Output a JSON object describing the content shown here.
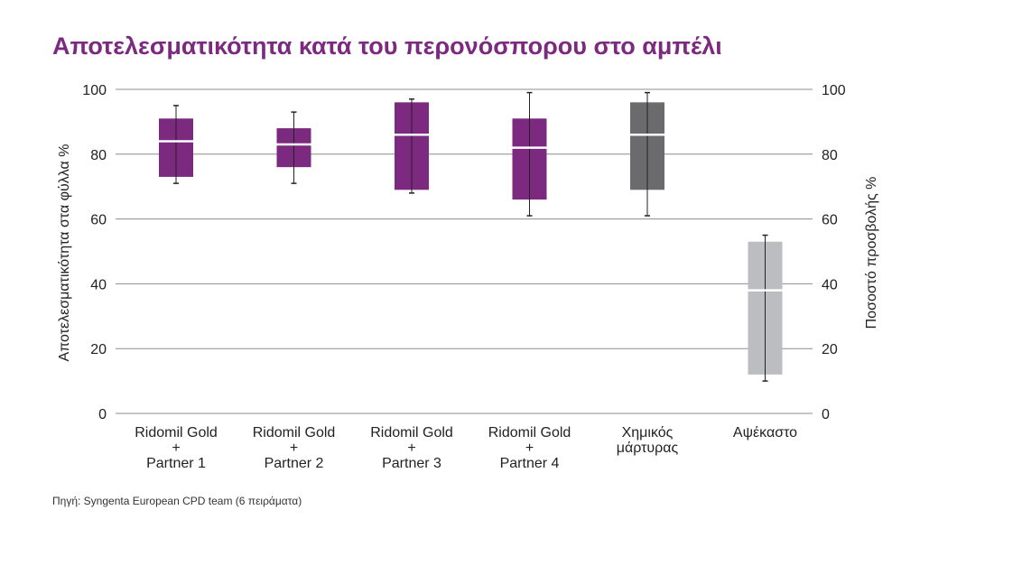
{
  "title": "Αποτελεσματικότητα κατά του περονόσπορου στο αμπέλι",
  "source": "Πηγή: Syngenta European CPD team (6 πειράματα)",
  "colors": {
    "title": "#7b2a7f",
    "treatment": "#7b2a7f",
    "chemical_control": "#6b6b6e",
    "untreated": "#bcbdc0",
    "median": "#ffffff",
    "whisker": "#222222",
    "grid": "#8c8c8c"
  },
  "chart_data": {
    "type": "boxplot",
    "title": "Αποτελεσματικότητα κατά του περονόσπορου στο αμπέλι",
    "ylabel_left": "Αποτελεσματικότητα στα φύλλα %",
    "ylabel_right": "Ποσοστό προσβολής %",
    "ylim": [
      0,
      100
    ],
    "yticks": [
      "0",
      "20",
      "40",
      "60",
      "80",
      "100"
    ],
    "grid": true,
    "categories": [
      [
        "Ridomil Gold",
        "+",
        "Partner 1"
      ],
      [
        "Ridomil Gold",
        "+",
        "Partner 2"
      ],
      [
        "Ridomil Gold",
        "+",
        "Partner 3"
      ],
      [
        "Ridomil Gold",
        "+",
        "Partner 4"
      ],
      [
        "Χημικός",
        "μάρτυρας"
      ],
      [
        "Αψέκαστο"
      ]
    ],
    "boxes": [
      {
        "min": 71,
        "q1": 73,
        "median": 84,
        "q3": 91,
        "max": 95,
        "color": "treatment"
      },
      {
        "min": 71,
        "q1": 76,
        "median": 83,
        "q3": 88,
        "max": 93,
        "color": "treatment"
      },
      {
        "min": 68,
        "q1": 69,
        "median": 86,
        "q3": 96,
        "max": 97,
        "color": "treatment"
      },
      {
        "min": 61,
        "q1": 66,
        "median": 82,
        "q3": 91,
        "max": 99,
        "color": "treatment"
      },
      {
        "min": 61,
        "q1": 69,
        "median": 86,
        "q3": 96,
        "max": 99,
        "color": "chemical_control"
      },
      {
        "min": 10,
        "q1": 12,
        "median": 38,
        "q3": 53,
        "max": 55,
        "color": "untreated"
      }
    ]
  }
}
